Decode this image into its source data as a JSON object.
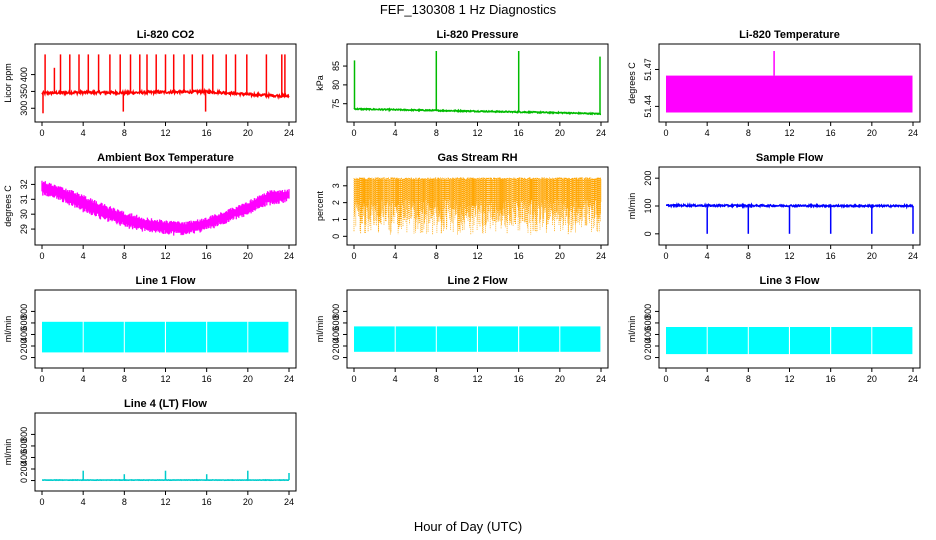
{
  "figure": {
    "title": "FEF_130308  1 Hz Diagnostics",
    "xlabel": "Hour of Day (UTC)"
  },
  "chart_data": [
    {
      "type": "line",
      "title": "Li-820 CO2",
      "ylabel": "Licor ppm",
      "color": "#ff0000",
      "xlim": [
        0,
        24
      ],
      "ylim": [
        280,
        470
      ],
      "xticks": [
        0,
        4,
        8,
        12,
        16,
        20,
        24
      ],
      "yticks": [
        300,
        350,
        400
      ],
      "pattern": "baseline",
      "baseline": [
        [
          0,
          345
        ],
        [
          4,
          347
        ],
        [
          8,
          346
        ],
        [
          12,
          348
        ],
        [
          16,
          349
        ],
        [
          18,
          346
        ],
        [
          20,
          341
        ],
        [
          24,
          336
        ]
      ],
      "noise": 4,
      "spikes": [
        [
          0.1,
          285
        ],
        [
          0.3,
          460
        ],
        [
          1.2,
          420
        ],
        [
          1.8,
          460
        ],
        [
          2.7,
          460
        ],
        [
          3.6,
          460
        ],
        [
          4.5,
          460
        ],
        [
          5.5,
          460
        ],
        [
          6.6,
          460
        ],
        [
          7.6,
          460
        ],
        [
          7.9,
          290
        ],
        [
          8.6,
          460
        ],
        [
          9.5,
          460
        ],
        [
          10.2,
          460
        ],
        [
          11.1,
          460
        ],
        [
          12.0,
          460
        ],
        [
          12.8,
          460
        ],
        [
          13.8,
          460
        ],
        [
          14.6,
          460
        ],
        [
          15.6,
          460
        ],
        [
          15.9,
          290
        ],
        [
          16.6,
          460
        ],
        [
          17.9,
          460
        ],
        [
          18.8,
          460
        ],
        [
          19.9,
          460
        ],
        [
          21.8,
          460
        ],
        [
          23.3,
          460
        ],
        [
          23.6,
          460
        ]
      ]
    },
    {
      "type": "line",
      "title": "Li-820 Pressure",
      "ylabel": "kPa",
      "color": "#00bb00",
      "xlim": [
        0,
        24
      ],
      "ylim": [
        72,
        89
      ],
      "xticks": [
        0,
        4,
        8,
        12,
        16,
        20,
        24
      ],
      "yticks": [
        75,
        80,
        85
      ],
      "pattern": "baseline",
      "baseline": [
        [
          0,
          73.6
        ],
        [
          4,
          73.4
        ],
        [
          8,
          73.2
        ],
        [
          12,
          73.0
        ],
        [
          16,
          72.8
        ],
        [
          20,
          72.6
        ],
        [
          24,
          72.3
        ]
      ],
      "noise": 0.15,
      "spikes": [
        [
          0.05,
          86.5
        ],
        [
          8.0,
          89
        ],
        [
          16.0,
          89
        ],
        [
          23.9,
          87.5
        ]
      ]
    },
    {
      "type": "area",
      "title": "Li-820 Temperature",
      "ylabel": "degrees C",
      "color": "#ff00ff",
      "xlim": [
        0,
        24
      ],
      "ylim": [
        51.433,
        51.485
      ],
      "xticks": [
        0,
        4,
        8,
        12,
        16,
        20,
        24
      ],
      "yticks": [
        51.44,
        51.47
      ],
      "band": [
        51.435,
        51.465
      ],
      "spikes": [
        [
          10.5,
          51.485
        ]
      ]
    },
    {
      "type": "line",
      "title": "Ambient Box Temperature",
      "ylabel": "degrees C",
      "color": "#ff00ff",
      "xlim": [
        0,
        24
      ],
      "ylim": [
        28.4,
        32.7
      ],
      "xticks": [
        0,
        4,
        8,
        12,
        16,
        20,
        24
      ],
      "yticks": [
        29,
        30,
        31,
        32
      ],
      "pattern": "envelope",
      "upper": [
        [
          0,
          32.3
        ],
        [
          2,
          31.9
        ],
        [
          4,
          31.3
        ],
        [
          6,
          30.7
        ],
        [
          8,
          30.2
        ],
        [
          10,
          29.8
        ],
        [
          12,
          29.6
        ],
        [
          14,
          29.5
        ],
        [
          16,
          29.8
        ],
        [
          18,
          30.3
        ],
        [
          20,
          30.9
        ],
        [
          22,
          31.6
        ],
        [
          24,
          31.7
        ]
      ],
      "lower": [
        [
          0,
          31.4
        ],
        [
          2,
          30.9
        ],
        [
          4,
          30.2
        ],
        [
          6,
          29.7
        ],
        [
          8,
          29.2
        ],
        [
          10,
          28.9
        ],
        [
          12,
          28.7
        ],
        [
          14,
          28.7
        ],
        [
          16,
          29.0
        ],
        [
          18,
          29.5
        ],
        [
          20,
          30.0
        ],
        [
          22,
          30.7
        ],
        [
          24,
          30.9
        ]
      ]
    },
    {
      "type": "scatter",
      "title": "Gas Stream RH",
      "ylabel": "percent",
      "color": "#ffa500",
      "xlim": [
        0,
        24
      ],
      "ylim": [
        -0.1,
        3.7
      ],
      "xticks": [
        0,
        4,
        8,
        12,
        16,
        20,
        24
      ],
      "yticks": [
        0,
        1,
        2,
        3
      ],
      "pattern": "dense",
      "range": [
        0.6,
        3.5
      ]
    },
    {
      "type": "line",
      "title": "Sample Flow",
      "ylabel": "ml/min",
      "color": "#0000ff",
      "xlim": [
        0,
        24
      ],
      "ylim": [
        -15,
        215
      ],
      "xticks": [
        0,
        4,
        8,
        12,
        16,
        20,
        24
      ],
      "yticks": [
        0,
        100,
        200
      ],
      "pattern": "baseline",
      "baseline": [
        [
          0,
          102
        ],
        [
          24,
          100
        ]
      ],
      "noise": 3,
      "spikes": [
        [
          4,
          0
        ],
        [
          8,
          0
        ],
        [
          12,
          0
        ],
        [
          16,
          0
        ],
        [
          20,
          0
        ],
        [
          24,
          0
        ]
      ]
    },
    {
      "type": "area",
      "title": "Line 1 Flow",
      "ylabel": "ml/min",
      "color": "#00ffff",
      "xlim": [
        0,
        24
      ],
      "ylim": [
        -60,
        1050
      ],
      "xticks": [
        0,
        4,
        8,
        12,
        16,
        20,
        24
      ],
      "yticks": [
        0,
        200,
        400,
        600,
        800
      ],
      "band": [
        90,
        620
      ],
      "gaps": [
        4,
        8,
        12,
        16,
        20
      ]
    },
    {
      "type": "area",
      "title": "Line 2 Flow",
      "ylabel": "ml/min",
      "color": "#00ffff",
      "xlim": [
        0,
        24
      ],
      "ylim": [
        -60,
        1050
      ],
      "xticks": [
        0,
        4,
        8,
        12,
        16,
        20,
        24
      ],
      "yticks": [
        0,
        200,
        400,
        600,
        800
      ],
      "band": [
        100,
        540
      ],
      "gaps": [
        4,
        8,
        12,
        16,
        20
      ]
    },
    {
      "type": "area",
      "title": "Line 3 Flow",
      "ylabel": "ml/min",
      "color": "#00ffff",
      "xlim": [
        0,
        24
      ],
      "ylim": [
        -60,
        1050
      ],
      "xticks": [
        0,
        4,
        8,
        12,
        16,
        20,
        24
      ],
      "yticks": [
        0,
        200,
        400,
        600,
        800
      ],
      "band": [
        60,
        530
      ],
      "gaps": [
        4,
        8,
        12,
        16,
        20
      ]
    },
    {
      "type": "line",
      "title": "Line 4 (LT) Flow",
      "ylabel": "ml/min",
      "color": "#00cccc",
      "xlim": [
        0,
        24
      ],
      "ylim": [
        -60,
        1050
      ],
      "xticks": [
        0,
        4,
        8,
        12,
        16,
        20,
        24
      ],
      "yticks": [
        0,
        200,
        400,
        600,
        800
      ],
      "pattern": "baseline",
      "baseline": [
        [
          0,
          8
        ],
        [
          24,
          8
        ]
      ],
      "noise": 3,
      "spikes": [
        [
          4,
          170
        ],
        [
          8,
          110
        ],
        [
          12,
          170
        ],
        [
          16,
          110
        ],
        [
          20,
          170
        ],
        [
          24,
          130
        ]
      ]
    }
  ]
}
